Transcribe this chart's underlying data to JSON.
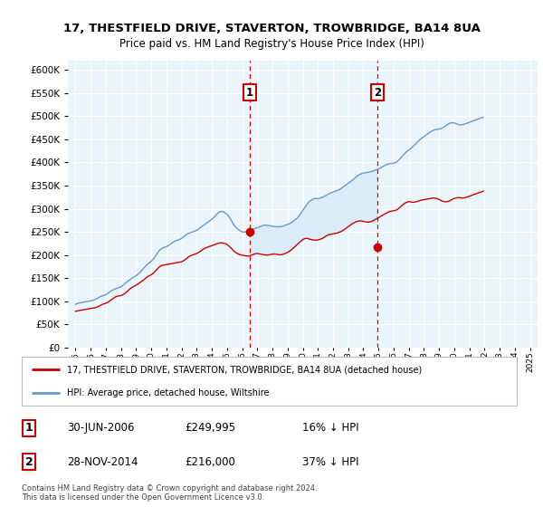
{
  "title": "17, THESTFIELD DRIVE, STAVERTON, TROWBRIDGE, BA14 8UA",
  "subtitle": "Price paid vs. HM Land Registry's House Price Index (HPI)",
  "legend_line1": "17, THESTFIELD DRIVE, STAVERTON, TROWBRIDGE, BA14 8UA (detached house)",
  "legend_line2": "HPI: Average price, detached house, Wiltshire",
  "footnote": "Contains HM Land Registry data © Crown copyright and database right 2024.\nThis data is licensed under the Open Government Licence v3.0.",
  "sale1_date": "30-JUN-2006",
  "sale1_price": 249995,
  "sale1_label": "16% ↓ HPI",
  "sale2_date": "28-NOV-2014",
  "sale2_price": 216000,
  "sale2_label": "37% ↓ HPI",
  "sale1_x": 2006.5,
  "sale2_x": 2014.92,
  "red_color": "#cc0000",
  "blue_color": "#6699cc",
  "fill_color": "#d6eaf8",
  "vline_color": "#cc0000",
  "background_color": "#ffffff",
  "plot_bg_color": "#eaf4fb",
  "grid_color": "#ffffff",
  "ylim": [
    0,
    620000
  ],
  "xlim": [
    1994.5,
    2025.5
  ],
  "yticks": [
    0,
    50000,
    100000,
    150000,
    200000,
    250000,
    300000,
    350000,
    400000,
    450000,
    500000,
    550000,
    600000
  ],
  "xticks": [
    1995,
    1996,
    1997,
    1998,
    1999,
    2000,
    2001,
    2002,
    2003,
    2004,
    2005,
    2006,
    2007,
    2008,
    2009,
    2010,
    2011,
    2012,
    2013,
    2014,
    2015,
    2016,
    2017,
    2018,
    2019,
    2020,
    2021,
    2022,
    2023,
    2024,
    2025
  ],
  "hpi_y_monthly": [
    93000,
    94000,
    95000,
    96000,
    96500,
    97000,
    97500,
    98000,
    98500,
    99000,
    99500,
    100000,
    100500,
    101000,
    102000,
    103000,
    104000,
    105500,
    107000,
    108500,
    110000,
    111000,
    112000,
    113000,
    114000,
    115500,
    117500,
    119500,
    121500,
    123000,
    124500,
    126000,
    127000,
    128000,
    129000,
    130000,
    131000,
    133000,
    135000,
    137500,
    140000,
    142000,
    144000,
    146000,
    148000,
    150000,
    152000,
    153000,
    155000,
    157000,
    159500,
    162000,
    165000,
    168000,
    171000,
    174000,
    177000,
    180000,
    182000,
    184000,
    186000,
    189000,
    192000,
    196000,
    200000,
    204000,
    208000,
    211000,
    213000,
    215000,
    216000,
    217000,
    218000,
    219500,
    221000,
    223000,
    225000,
    227000,
    229000,
    230000,
    231000,
    232000,
    233000,
    234000,
    236000,
    238000,
    240000,
    242000,
    244000,
    246000,
    247000,
    248000,
    249000,
    250000,
    251000,
    252000,
    253000,
    255000,
    257000,
    259000,
    261000,
    263000,
    265000,
    267000,
    269000,
    271000,
    273000,
    275000,
    277000,
    279500,
    282000,
    285000,
    288000,
    291000,
    293000,
    294000,
    294000,
    293500,
    292000,
    290000,
    288000,
    285000,
    281000,
    277000,
    272000,
    267000,
    263000,
    260000,
    257000,
    255000,
    253000,
    251000,
    250000,
    249500,
    249500,
    250000,
    251000,
    252000,
    253000,
    254000,
    255000,
    256000,
    257000,
    258000,
    259000,
    260000,
    261000,
    262000,
    263000,
    264000,
    264500,
    264500,
    264000,
    263500,
    263000,
    262500,
    262000,
    261500,
    261000,
    261000,
    261000,
    261000,
    261000,
    261500,
    262000,
    263000,
    264000,
    265000,
    266000,
    267000,
    268000,
    270000,
    272000,
    274000,
    276000,
    278000,
    281000,
    284000,
    288000,
    292000,
    296000,
    300000,
    304000,
    308000,
    312000,
    315000,
    317000,
    319000,
    320500,
    321500,
    322000,
    322000,
    322000,
    322500,
    323000,
    324000,
    325000,
    326500,
    328000,
    329500,
    331000,
    332500,
    334000,
    335000,
    336000,
    337000,
    338000,
    339000,
    340000,
    341500,
    343000,
    345000,
    347000,
    349000,
    351000,
    353000,
    355000,
    357000,
    359000,
    361000,
    363000,
    365500,
    368000,
    370500,
    372500,
    374000,
    375000,
    376000,
    377000,
    377500,
    378000,
    378500,
    379000,
    379500,
    380000,
    381000,
    382000,
    383000,
    384000,
    385000,
    386000,
    387500,
    389000,
    390500,
    392000,
    393500,
    395000,
    396000,
    397000,
    397500,
    398000,
    398000,
    398500,
    399000,
    400500,
    402500,
    405000,
    408000,
    411000,
    414000,
    417000,
    420000,
    423000,
    425000,
    427000,
    429000,
    431500,
    434000,
    436500,
    439000,
    442000,
    445000,
    447500,
    450000,
    452000,
    454000,
    456000,
    458000,
    460000,
    462000,
    464000,
    466000,
    467500,
    469000,
    470000,
    471000,
    471500,
    472000,
    472500,
    473000,
    474000,
    475500,
    477000,
    479000,
    481000,
    483000,
    484500,
    485500,
    486000,
    486000,
    485500,
    484500,
    483500,
    482500,
    482000,
    481500,
    481500,
    482000,
    483000,
    484000,
    485000,
    486000,
    487000,
    488000,
    489000,
    490000,
    491000,
    492000,
    493000,
    494000,
    495000,
    496000,
    497000,
    498000
  ],
  "red_y_monthly": [
    78000,
    78500,
    79000,
    79500,
    80000,
    80500,
    81000,
    81500,
    82000,
    82500,
    83000,
    83500,
    84000,
    84500,
    85000,
    85500,
    86000,
    87000,
    88000,
    89500,
    91000,
    92500,
    93500,
    94500,
    95500,
    96500,
    98000,
    100000,
    102000,
    104000,
    106000,
    108000,
    109500,
    110500,
    111000,
    111500,
    112000,
    113000,
    114500,
    116500,
    118500,
    121000,
    123500,
    126000,
    128000,
    130000,
    131500,
    133000,
    134500,
    136000,
    138000,
    140000,
    142000,
    144000,
    146000,
    148000,
    150500,
    152500,
    154000,
    155500,
    157000,
    159000,
    161500,
    164000,
    167000,
    170000,
    173000,
    175000,
    176500,
    177500,
    178000,
    178500,
    179000,
    179500,
    180000,
    180500,
    181000,
    181500,
    182000,
    182500,
    183000,
    183500,
    184000,
    184500,
    185000,
    186500,
    188000,
    190000,
    192000,
    194500,
    196500,
    198000,
    199000,
    200000,
    201000,
    202000,
    203000,
    204500,
    206000,
    208000,
    210000,
    212000,
    213500,
    215000,
    216000,
    217000,
    218000,
    219000,
    220000,
    221000,
    222000,
    223000,
    224000,
    225000,
    225500,
    226000,
    226000,
    225500,
    225000,
    224000,
    222500,
    220500,
    218000,
    215500,
    212500,
    209500,
    207000,
    205000,
    203500,
    202000,
    201000,
    200000,
    199500,
    199000,
    198500,
    198000,
    197500,
    197500,
    198000,
    199000,
    200000,
    201000,
    202000,
    203000,
    203000,
    202500,
    202000,
    201500,
    201000,
    200500,
    200000,
    199500,
    199500,
    200000,
    200500,
    201000,
    201500,
    202000,
    202000,
    201500,
    201000,
    200500,
    200000,
    200500,
    201000,
    202000,
    203000,
    204000,
    205500,
    207000,
    209000,
    211000,
    213500,
    216000,
    218500,
    221000,
    223500,
    226000,
    228500,
    231000,
    233000,
    234500,
    235500,
    236000,
    235500,
    234500,
    233500,
    233000,
    232500,
    232000,
    232000,
    232000,
    232500,
    233000,
    234000,
    235000,
    236500,
    238000,
    240000,
    241500,
    243000,
    244000,
    244500,
    245000,
    245500,
    246000,
    246500,
    247000,
    248000,
    249000,
    250000,
    251500,
    253000,
    255000,
    257000,
    259000,
    261000,
    263000,
    265000,
    267000,
    268500,
    270000,
    271500,
    272500,
    273000,
    273500,
    273500,
    273000,
    272500,
    272000,
    271500,
    271000,
    271000,
    271500,
    272000,
    273000,
    274500,
    276000,
    277500,
    279000,
    280500,
    282000,
    284000,
    285500,
    287000,
    288500,
    290000,
    291500,
    293000,
    294000,
    294500,
    295000,
    295500,
    296000,
    297000,
    298500,
    300500,
    303000,
    305500,
    308000,
    310000,
    312000,
    313500,
    314500,
    315000,
    315000,
    314500,
    314000,
    314000,
    314500,
    315000,
    316000,
    317000,
    318000,
    318500,
    319000,
    319500,
    320000,
    320500,
    321000,
    321500,
    322000,
    322500,
    323000,
    323000,
    322500,
    322000,
    321000,
    320000,
    318500,
    317000,
    316000,
    315500,
    315000,
    315000,
    315500,
    316500,
    318000,
    319500,
    321000,
    322000,
    323000,
    323500,
    324000,
    324000,
    323500,
    323000,
    323000,
    323500,
    324000,
    325000,
    326000,
    327000,
    328000,
    329000,
    330000,
    331000,
    332000,
    333000,
    334000,
    335000,
    336000,
    337000,
    338000
  ]
}
